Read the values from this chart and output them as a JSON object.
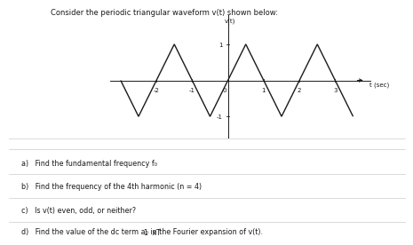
{
  "title": "Consider the periodic triangular waveform v(t) shown below:",
  "ylabel": "v(t)",
  "xlabel": "t (sec)",
  "background_color": "#ffffff",
  "wave_color": "#1a1a1a",
  "axis_color": "#1a1a1a",
  "waveform_x": [
    -3.0,
    -2.5,
    -2.0,
    -1.5,
    -1.0,
    -0.5,
    0.0,
    0.5,
    1.0,
    1.5,
    2.0,
    2.5,
    3.0,
    3.5
  ],
  "waveform_y": [
    0,
    -1,
    0,
    1,
    0,
    -1,
    0,
    1,
    0,
    -1,
    0,
    1,
    0,
    -1
  ],
  "xlim": [
    -3.3,
    4.0
  ],
  "ylim": [
    -1.6,
    1.8
  ],
  "xticks": [
    -2,
    -1,
    0,
    1,
    2,
    3
  ],
  "yticks": [
    -1,
    1
  ],
  "questions": [
    "a)   Find the fundamental frequency f₀",
    "b)   Find the frequency of the 4th harmonic (n = 4)",
    "c)   Is v(t) even, odd, or neither?",
    "d)   Find the value of the dc term a₀ in the Fourier expansion of v(t)."
  ],
  "bottom_text": "1  xT"
}
